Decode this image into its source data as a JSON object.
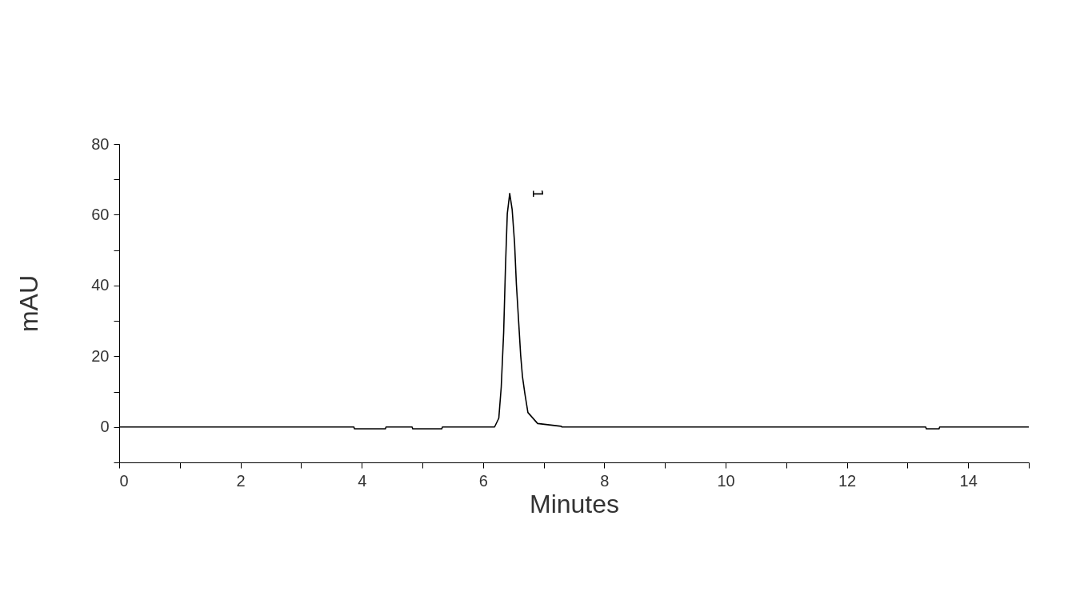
{
  "chart_data": {
    "type": "line",
    "xlabel": "Minutes",
    "ylabel": "mAU",
    "x": [
      0,
      3.87,
      3.88,
      4.39,
      4.4,
      4.83,
      4.84,
      5.32,
      5.33,
      6.19,
      6.26,
      6.3,
      6.34,
      6.37,
      6.4,
      6.44,
      6.48,
      6.52,
      6.55,
      6.59,
      6.62,
      6.65,
      6.69,
      6.74,
      6.9,
      7.29,
      7.3,
      13.3,
      13.31,
      13.52,
      13.53,
      15
    ],
    "series": [
      {
        "color": "#000000",
        "values": [
          0,
          0,
          -0.5,
          -0.5,
          0,
          0,
          -0.5,
          -0.5,
          0,
          0,
          2.5,
          11.3,
          26.7,
          45.3,
          60.3,
          66.0,
          61.5,
          52.0,
          40.3,
          29.0,
          20.4,
          14.3,
          9.4,
          4.1,
          1.0,
          0.2,
          0,
          0,
          -0.5,
          -0.5,
          0,
          0
        ]
      }
    ],
    "annotations": [
      {
        "text": "1",
        "x": 6.44,
        "y": 66.0
      }
    ],
    "xlim": [
      0,
      15
    ],
    "ylim": [
      -10,
      80
    ],
    "xticks": [
      0,
      {
        "value": 1,
        "label": null
      },
      2,
      {
        "value": 3,
        "label": null
      },
      4,
      {
        "value": 5,
        "label": null
      },
      6,
      {
        "value": 7,
        "label": null
      },
      8,
      {
        "value": 9,
        "label": null
      },
      10,
      {
        "value": 11,
        "label": null
      },
      12,
      {
        "value": 13,
        "label": null
      },
      14,
      {
        "value": 15,
        "label": null
      }
    ],
    "yticks": [
      {
        "value": -10,
        "label": null
      },
      0,
      {
        "value": 10,
        "label": null
      },
      20,
      {
        "value": 30,
        "label": null
      },
      40,
      {
        "value": 50,
        "label": null
      },
      60,
      {
        "value": 70,
        "label": null
      },
      80
    ],
    "grid": false,
    "legend": false
  }
}
